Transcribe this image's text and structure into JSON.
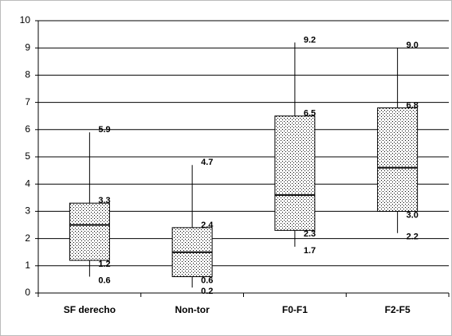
{
  "chart_data": {
    "type": "box",
    "categories": [
      "SF derecho",
      "Non-tor",
      "F0-F1",
      "F2-F5"
    ],
    "boxes": [
      {
        "min": 0.6,
        "q1": 1.2,
        "median": 2.5,
        "q3": 3.3,
        "max": 5.9,
        "value_labels": {
          "min": "0.6",
          "q1": "1.2",
          "q3": "3.3",
          "max": "5.9"
        }
      },
      {
        "min": 0.2,
        "q1": 0.6,
        "median": 1.5,
        "q3": 2.4,
        "max": 4.7,
        "value_labels": {
          "min": "0.2",
          "q1": "0.6",
          "q3": "2.4",
          "max": "4.7"
        }
      },
      {
        "min": 1.7,
        "q1": 2.3,
        "median": 3.6,
        "q3": 6.5,
        "max": 9.2,
        "value_labels": {
          "min": "1.7",
          "q1": "2.3",
          "q3": "6.5",
          "max": "9.2"
        }
      },
      {
        "min": 2.2,
        "q1": 3.0,
        "median": 4.6,
        "q3": 6.8,
        "max": 9.0,
        "value_labels": {
          "min": "2.2",
          "q1": "3.0",
          "q3": "6.8",
          "max": "9.0"
        }
      }
    ],
    "ylim": [
      0,
      10
    ],
    "yticks": [
      0,
      1,
      2,
      3,
      4,
      5,
      6,
      7,
      8,
      9,
      10
    ],
    "grid": true,
    "color": "#000000"
  }
}
